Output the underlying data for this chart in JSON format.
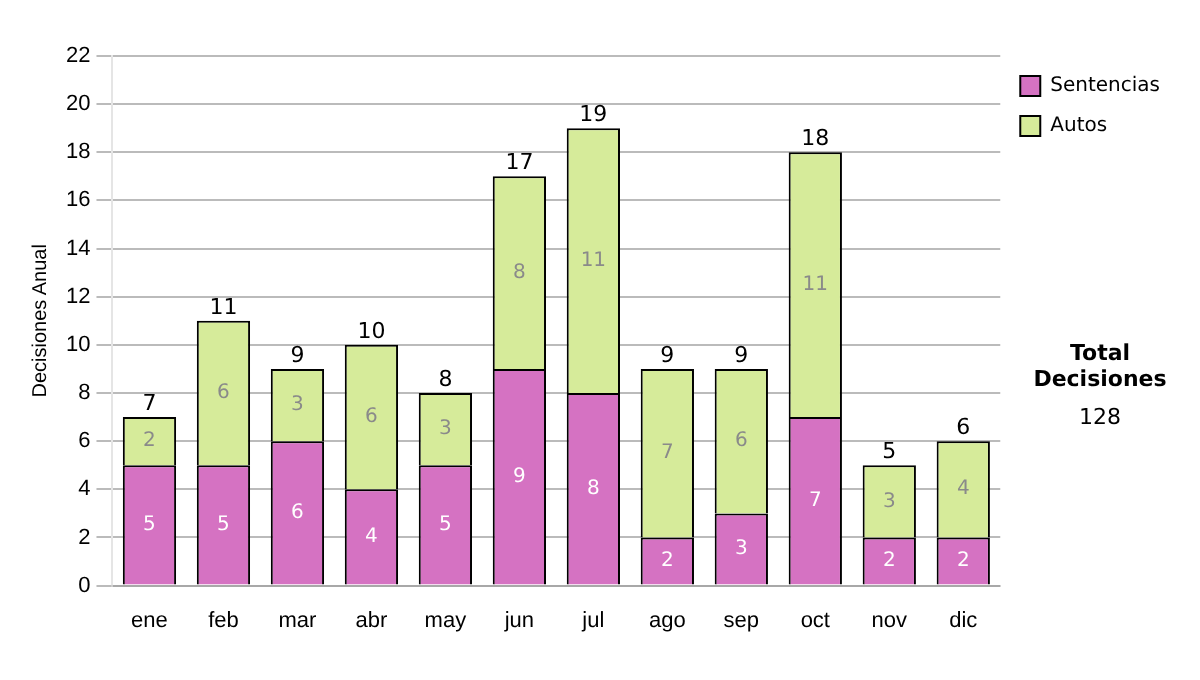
{
  "chart_data": {
    "type": "bar",
    "stacked": true,
    "ylabel": "Decisiones Anual",
    "categories": [
      "ene",
      "feb",
      "mar",
      "abr",
      "may",
      "jun",
      "jul",
      "ago",
      "sep",
      "oct",
      "nov",
      "dic"
    ],
    "series": [
      {
        "name": "Sentencias",
        "color": "#d572c2",
        "values": [
          5,
          5,
          6,
          4,
          5,
          9,
          8,
          2,
          3,
          7,
          2,
          2
        ]
      },
      {
        "name": "Autos",
        "color": "#d6eb9a",
        "values": [
          2,
          6,
          3,
          6,
          3,
          8,
          11,
          7,
          6,
          11,
          3,
          4
        ]
      }
    ],
    "ylim": [
      0,
      22
    ],
    "yticks": [
      0,
      2,
      4,
      6,
      8,
      10,
      12,
      14,
      16,
      18,
      20,
      22
    ],
    "grid": "y",
    "legend": "right",
    "data_labels": true,
    "totals": [
      "7",
      "11",
      "9",
      "10",
      "8",
      "17",
      "19",
      "9",
      "9",
      "18",
      "5",
      "6"
    ],
    "annotations": [
      "Total Decisiones",
      "128"
    ]
  }
}
